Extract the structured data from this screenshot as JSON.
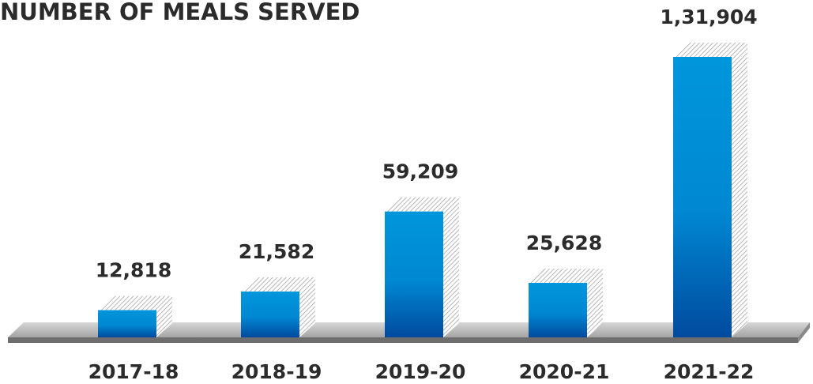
{
  "chart_data": {
    "type": "bar",
    "title": "NUMBER OF MEALS SERVED",
    "categories": [
      "2017-18",
      "2018-19",
      "2019-20",
      "2020-21",
      "2021-22"
    ],
    "values": [
      12818,
      21582,
      59209,
      25628,
      131904
    ],
    "value_labels": [
      "12,818",
      "21,582",
      "59,209",
      "25,628",
      "1,31,904"
    ],
    "color": "#0096dc"
  }
}
